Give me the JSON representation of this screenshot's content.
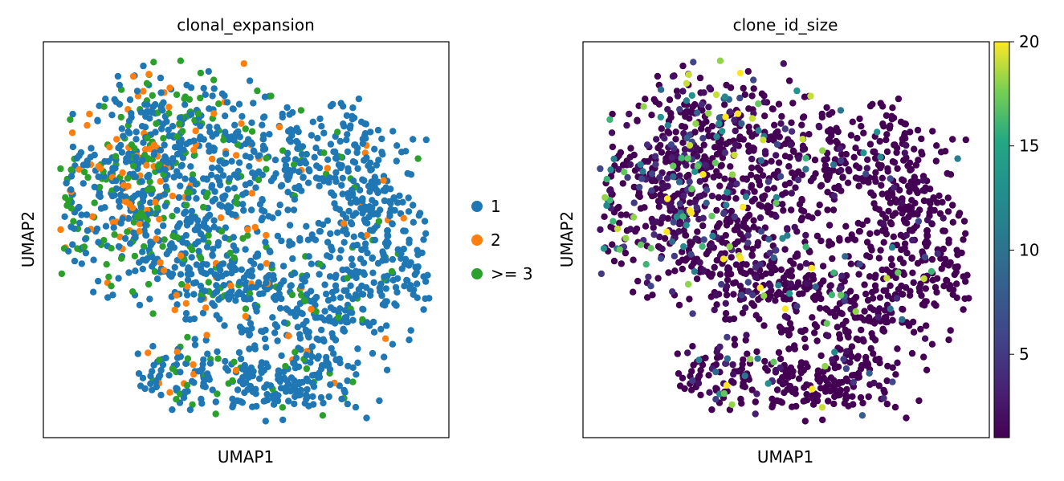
{
  "chart_data": [
    {
      "type": "scatter",
      "title": "clonal_expansion",
      "xlabel": "UMAP1",
      "ylabel": "UMAP2",
      "grid": false,
      "ticks": false,
      "legend_position": "right, outside plot",
      "legend": [
        {
          "label": "1",
          "color": "#1f77b4"
        },
        {
          "label": "2",
          "color": "#ff7f0e"
        },
        {
          "label": ">= 3",
          "color": "#2ca02c"
        }
      ],
      "n_points_approx": 1800,
      "series": [
        {
          "name": "1",
          "color": "#1f77b4",
          "fraction_approx": 0.78
        },
        {
          "name": "2",
          "color": "#ff7f0e",
          "fraction_approx": 0.08
        },
        {
          "name": ">= 3",
          "color": "#2ca02c",
          "fraction_approx": 0.14
        }
      ]
    },
    {
      "type": "scatter",
      "title": "clone_id_size",
      "xlabel": "UMAP1",
      "ylabel": "UMAP2",
      "grid": false,
      "ticks": false,
      "colormap": "viridis",
      "colorbar": {
        "min": 1,
        "max": 20,
        "ticks": [
          5,
          10,
          15,
          20
        ],
        "tick_labels": [
          "5",
          "10",
          "15",
          "20"
        ],
        "position": "right"
      },
      "n_points_approx": 1800
    }
  ],
  "colors": {
    "c1": "#1f77b4",
    "c2": "#ff7f0e",
    "c3": "#2ca02c",
    "axes": "#000000",
    "background": "#ffffff"
  }
}
